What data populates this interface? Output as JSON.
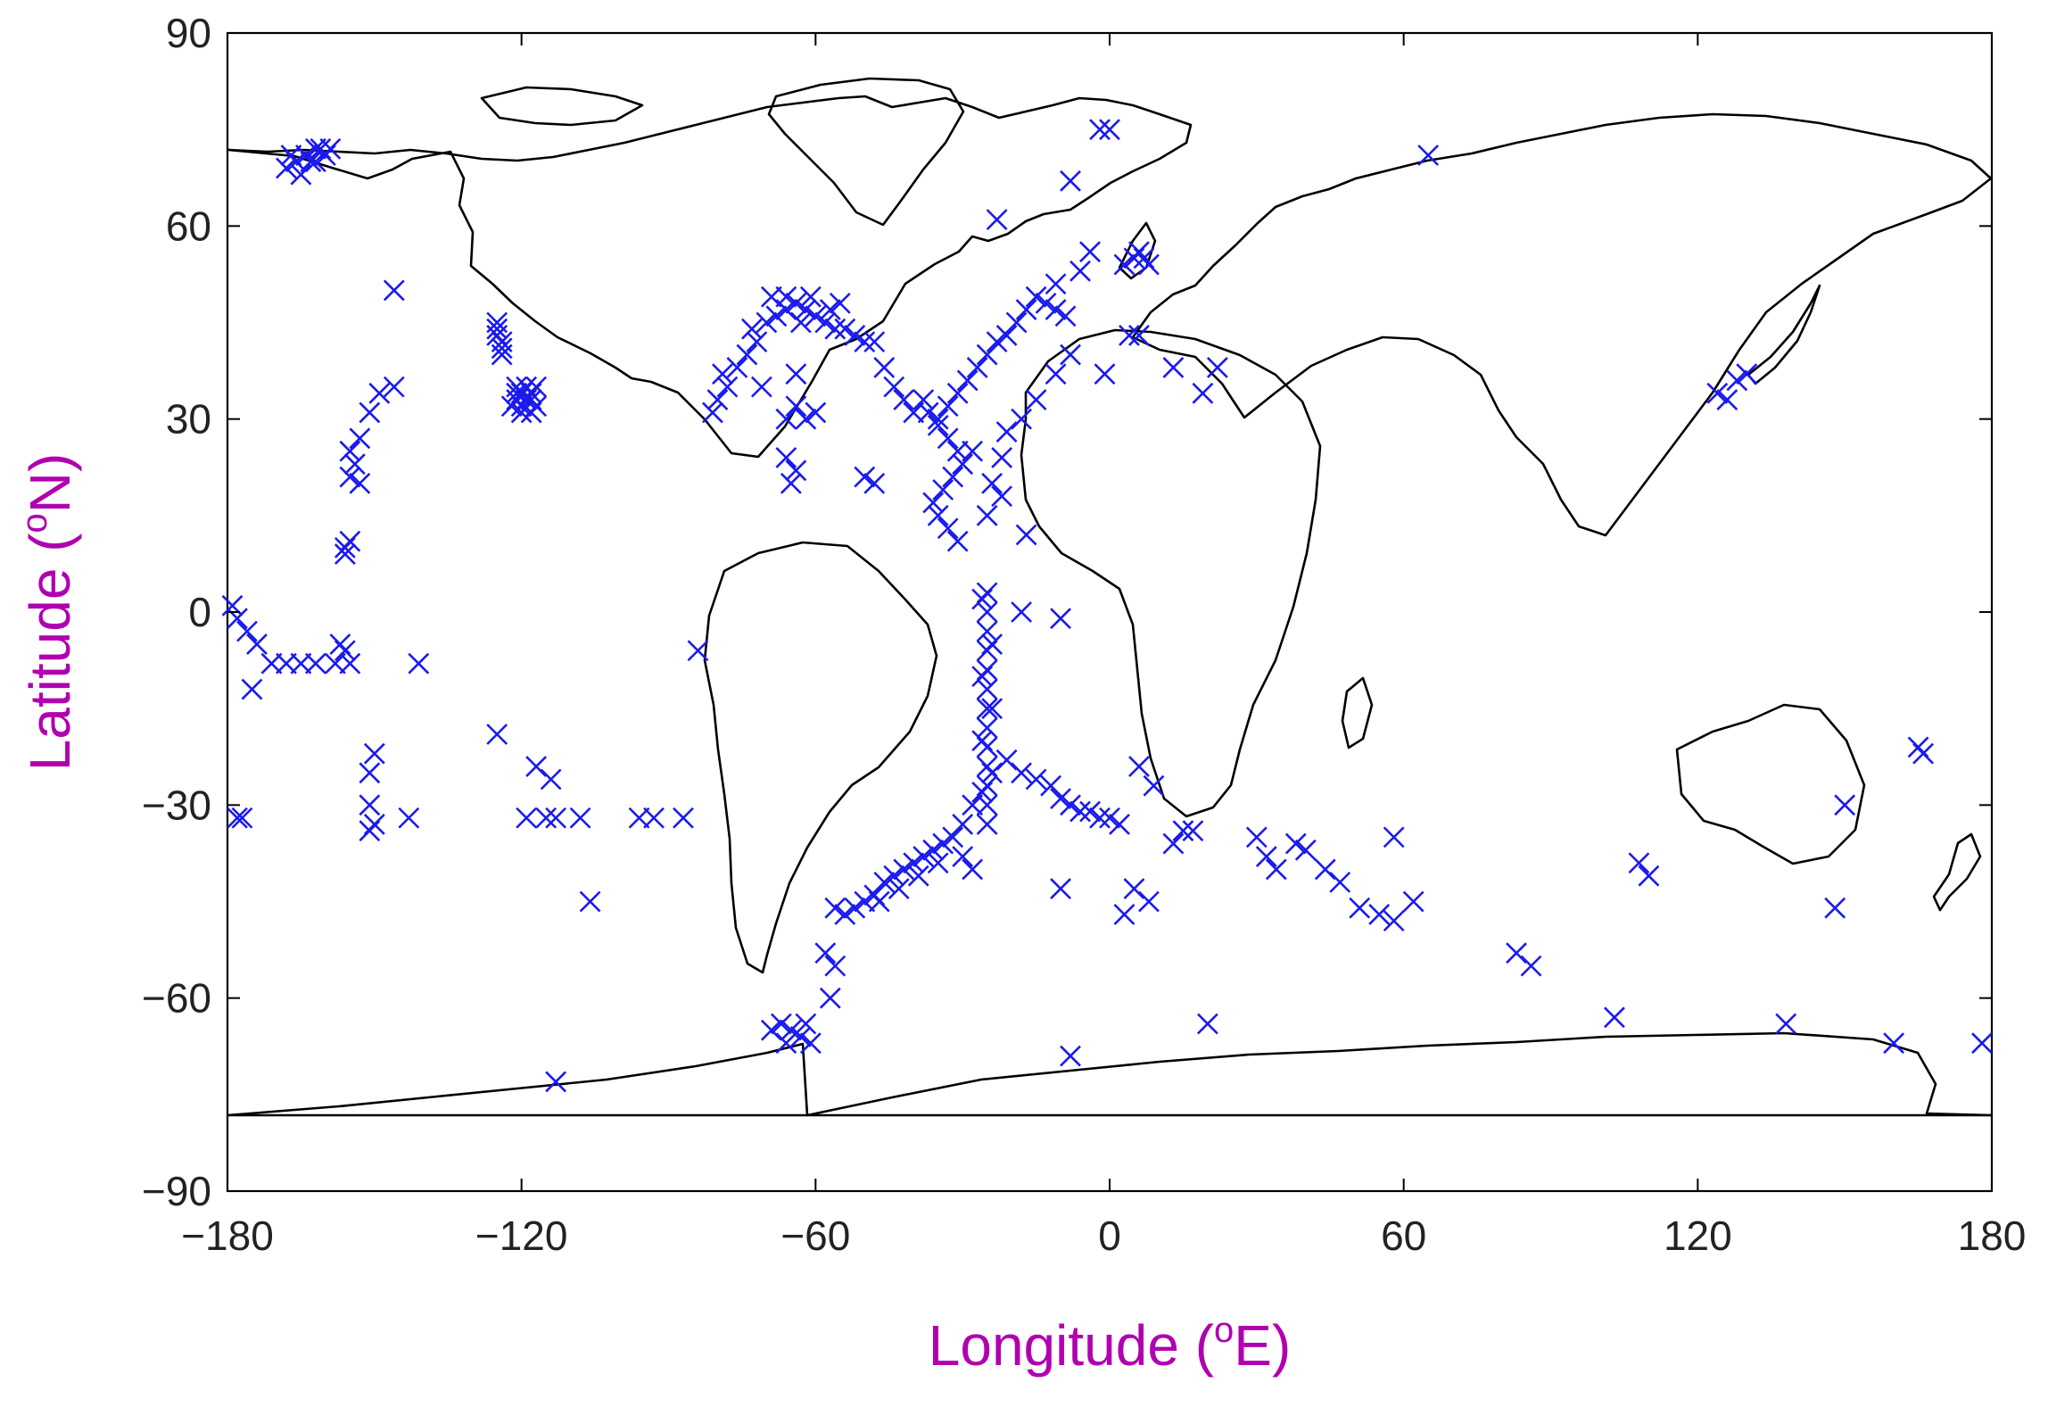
{
  "chart_data": {
    "type": "scatter",
    "title": "",
    "xlabel": "Longitude (",
    "xlabel_sup": "o",
    "xlabel_unit": "E)",
    "ylabel": "Latitude (",
    "ylabel_sup": "o",
    "ylabel_unit": "N)",
    "xlim": [
      -180,
      180
    ],
    "ylim": [
      -90,
      90
    ],
    "xticks": [
      -180,
      -120,
      -60,
      0,
      60,
      120,
      180
    ],
    "yticks": [
      -90,
      -60,
      -30,
      0,
      30,
      60,
      90
    ],
    "xtick_labels": [
      "−180",
      "−120",
      "−60",
      "0",
      "60",
      "120",
      "180"
    ],
    "ytick_labels": [
      "−90",
      "−60",
      "−30",
      "0",
      "30",
      "60",
      "90"
    ],
    "grid": false,
    "background_map": "world-coastlines",
    "colors": {
      "marker": "#1a1aee",
      "axis_title": "#b000b0",
      "coastline": "#000000"
    },
    "series": [
      {
        "marker": "x",
        "points": [
          [
            -168,
            69
          ],
          [
            -166,
            70
          ],
          [
            -164,
            71
          ],
          [
            -162,
            72
          ],
          [
            -160,
            71
          ],
          [
            -165,
            68
          ],
          [
            -163,
            70
          ],
          [
            -161,
            72
          ],
          [
            -159,
            72
          ],
          [
            -167,
            71
          ],
          [
            -162,
            70
          ],
          [
            -146,
            50
          ],
          [
            -125,
            44
          ],
          [
            -125,
            43
          ],
          [
            -124,
            42
          ],
          [
            -124,
            41
          ],
          [
            -125,
            45
          ],
          [
            -124,
            40
          ],
          [
            -121,
            35
          ],
          [
            -120,
            34
          ],
          [
            -119,
            33
          ],
          [
            -118,
            33
          ],
          [
            -121,
            33
          ],
          [
            -120,
            32
          ],
          [
            -118,
            34
          ],
          [
            -117,
            32
          ],
          [
            -119,
            35
          ],
          [
            -122,
            32
          ],
          [
            -120,
            31
          ],
          [
            -118,
            31
          ],
          [
            -117,
            35
          ],
          [
            -121,
            34
          ],
          [
            -155,
            25
          ],
          [
            -154,
            23
          ],
          [
            -155,
            21
          ],
          [
            -153,
            27
          ],
          [
            -151,
            31
          ],
          [
            -149,
            34
          ],
          [
            -146,
            35
          ],
          [
            -153,
            20
          ],
          [
            -156,
            10
          ],
          [
            -155,
            11
          ],
          [
            -156,
            9
          ],
          [
            -179,
            1
          ],
          [
            -178,
            -1
          ],
          [
            -176,
            -3
          ],
          [
            -174,
            -5
          ],
          [
            -171,
            -8
          ],
          [
            -168,
            -8
          ],
          [
            -165,
            -8
          ],
          [
            -162,
            -8
          ],
          [
            -158,
            -8
          ],
          [
            -156,
            -6
          ],
          [
            -155,
            -8
          ],
          [
            -175,
            -12
          ],
          [
            -157,
            -5
          ],
          [
            -141,
            -8
          ],
          [
            -178,
            -32
          ],
          [
            -177,
            -32
          ],
          [
            -125,
            -19
          ],
          [
            -117,
            -24
          ],
          [
            -114,
            -26
          ],
          [
            -119,
            -32
          ],
          [
            -115,
            -32
          ],
          [
            -113,
            -32
          ],
          [
            -108,
            -32
          ],
          [
            -96,
            -32
          ],
          [
            -93,
            -32
          ],
          [
            -87,
            -32
          ],
          [
            -106,
            -45
          ],
          [
            -113,
            -73
          ],
          [
            -84,
            -6
          ],
          [
            -150,
            -22
          ],
          [
            -151,
            -25
          ],
          [
            -151,
            -30
          ],
          [
            -150,
            -33
          ],
          [
            -143,
            -32
          ],
          [
            -151,
            -34
          ],
          [
            -70,
            45
          ],
          [
            -68,
            46
          ],
          [
            -66,
            47
          ],
          [
            -64,
            48
          ],
          [
            -62,
            47
          ],
          [
            -60,
            46
          ],
          [
            -58,
            45
          ],
          [
            -56,
            44
          ],
          [
            -54,
            44
          ],
          [
            -52,
            43
          ],
          [
            -50,
            42
          ],
          [
            -72,
            42
          ],
          [
            -74,
            40
          ],
          [
            -76,
            38
          ],
          [
            -78,
            35
          ],
          [
            -80,
            33
          ],
          [
            -81,
            31
          ],
          [
            -79,
            37
          ],
          [
            -73,
            44
          ],
          [
            -69,
            49
          ],
          [
            -66,
            49
          ],
          [
            -63,
            45
          ],
          [
            -61,
            49
          ],
          [
            -57,
            47
          ],
          [
            -55,
            48
          ],
          [
            -66,
            30
          ],
          [
            -64,
            32
          ],
          [
            -62,
            30
          ],
          [
            -60,
            31
          ],
          [
            -66,
            24
          ],
          [
            -64,
            22
          ],
          [
            -65,
            20
          ],
          [
            -48,
            42
          ],
          [
            -46,
            38
          ],
          [
            -44,
            35
          ],
          [
            -42,
            33
          ],
          [
            -40,
            31
          ],
          [
            -50,
            21
          ],
          [
            -48,
            20
          ],
          [
            -71,
            35
          ],
          [
            -64,
            37
          ],
          [
            -38,
            33
          ],
          [
            -37,
            31
          ],
          [
            -35,
            29
          ],
          [
            -33,
            27
          ],
          [
            -31,
            25
          ],
          [
            -30,
            23
          ],
          [
            -32,
            21
          ],
          [
            -34,
            19
          ],
          [
            -36,
            17
          ],
          [
            -35,
            15
          ],
          [
            -33,
            13
          ],
          [
            -31,
            11
          ],
          [
            -35,
            30
          ],
          [
            -33,
            32
          ],
          [
            -31,
            34
          ],
          [
            -29,
            36
          ],
          [
            -27,
            38
          ],
          [
            -25,
            40
          ],
          [
            -23,
            42
          ],
          [
            -21,
            43
          ],
          [
            -19,
            45
          ],
          [
            -17,
            47
          ],
          [
            -15,
            49
          ],
          [
            -13,
            48
          ],
          [
            -11,
            47
          ],
          [
            -9,
            46
          ],
          [
            -8,
            40
          ],
          [
            -11,
            37
          ],
          [
            -15,
            33
          ],
          [
            -18,
            30
          ],
          [
            -21,
            28
          ],
          [
            -22,
            24
          ],
          [
            -24,
            20
          ],
          [
            -25,
            15
          ],
          [
            -28,
            25
          ],
          [
            -22,
            18
          ],
          [
            -17,
            12
          ],
          [
            -11,
            51
          ],
          [
            -6,
            53
          ],
          [
            -4,
            56
          ],
          [
            3,
            54
          ],
          [
            5,
            55
          ],
          [
            6,
            56
          ],
          [
            7,
            55
          ],
          [
            8,
            54
          ],
          [
            -2,
            75
          ],
          [
            0,
            75
          ],
          [
            -8,
            67
          ],
          [
            -23,
            61
          ],
          [
            6,
            43
          ],
          [
            4,
            43
          ],
          [
            -1,
            37
          ],
          [
            13,
            38
          ],
          [
            22,
            38
          ],
          [
            19,
            34
          ],
          [
            -25,
            3
          ],
          [
            -25,
            0
          ],
          [
            -25,
            -3
          ],
          [
            -25,
            -6
          ],
          [
            -25,
            -9
          ],
          [
            -25,
            -12
          ],
          [
            -25,
            -15
          ],
          [
            -25,
            -18
          ],
          [
            -25,
            -21
          ],
          [
            -25,
            -24
          ],
          [
            -25,
            -27
          ],
          [
            -25,
            -30
          ],
          [
            -25,
            -33
          ],
          [
            -26,
            -28
          ],
          [
            -24,
            -25
          ],
          [
            -26,
            -20
          ],
          [
            -24,
            -15
          ],
          [
            -26,
            -10
          ],
          [
            -24,
            -5
          ],
          [
            -26,
            2
          ],
          [
            -18,
            0
          ],
          [
            -10,
            -1
          ],
          [
            -28,
            -30
          ],
          [
            -30,
            -33
          ],
          [
            -32,
            -35
          ],
          [
            -34,
            -36
          ],
          [
            -36,
            -37
          ],
          [
            -38,
            -38
          ],
          [
            -40,
            -39
          ],
          [
            -42,
            -40
          ],
          [
            -44,
            -41
          ],
          [
            -46,
            -42
          ],
          [
            -48,
            -44
          ],
          [
            -50,
            -45
          ],
          [
            -52,
            -46
          ],
          [
            -54,
            -47
          ],
          [
            -56,
            -46
          ],
          [
            -35,
            -39
          ],
          [
            -39,
            -41
          ],
          [
            -43,
            -43
          ],
          [
            -47,
            -45
          ],
          [
            -30,
            -38
          ],
          [
            -28,
            -40
          ],
          [
            -58,
            -53
          ],
          [
            -56,
            -55
          ],
          [
            -57,
            -60
          ],
          [
            -67,
            -64
          ],
          [
            -65,
            -65
          ],
          [
            -63,
            -66
          ],
          [
            -61,
            -67
          ],
          [
            -66,
            -67
          ],
          [
            -69,
            -65
          ],
          [
            -62,
            -64
          ],
          [
            -21,
            -23
          ],
          [
            -18,
            -25
          ],
          [
            -15,
            -26
          ],
          [
            -12,
            -27
          ],
          [
            -10,
            -29
          ],
          [
            -8,
            -30
          ],
          [
            -6,
            -31
          ],
          [
            -4,
            -31
          ],
          [
            -2,
            -32
          ],
          [
            0,
            -32
          ],
          [
            2,
            -33
          ],
          [
            -10,
            -43
          ],
          [
            -8,
            -69
          ],
          [
            5,
            -43
          ],
          [
            8,
            -45
          ],
          [
            3,
            -47
          ],
          [
            6,
            -24
          ],
          [
            9,
            -27
          ],
          [
            13,
            -36
          ],
          [
            15,
            -34
          ],
          [
            17,
            -34
          ],
          [
            20,
            -64
          ],
          [
            30,
            -35
          ],
          [
            32,
            -38
          ],
          [
            34,
            -40
          ],
          [
            38,
            -36
          ],
          [
            40,
            -37
          ],
          [
            44,
            -40
          ],
          [
            47,
            -42
          ],
          [
            51,
            -46
          ],
          [
            55,
            -47
          ],
          [
            58,
            -48
          ],
          [
            62,
            -45
          ],
          [
            58,
            -35
          ],
          [
            83,
            -53
          ],
          [
            86,
            -55
          ],
          [
            103,
            -63
          ],
          [
            108,
            -39
          ],
          [
            110,
            -41
          ],
          [
            138,
            -64
          ],
          [
            148,
            -46
          ],
          [
            150,
            -30
          ],
          [
            160,
            -67
          ],
          [
            178,
            -67
          ],
          [
            124,
            34
          ],
          [
            126,
            33
          ],
          [
            128,
            36
          ],
          [
            130,
            37
          ],
          [
            65,
            71
          ],
          [
            165,
            -21
          ],
          [
            166,
            -22
          ]
        ]
      }
    ]
  }
}
